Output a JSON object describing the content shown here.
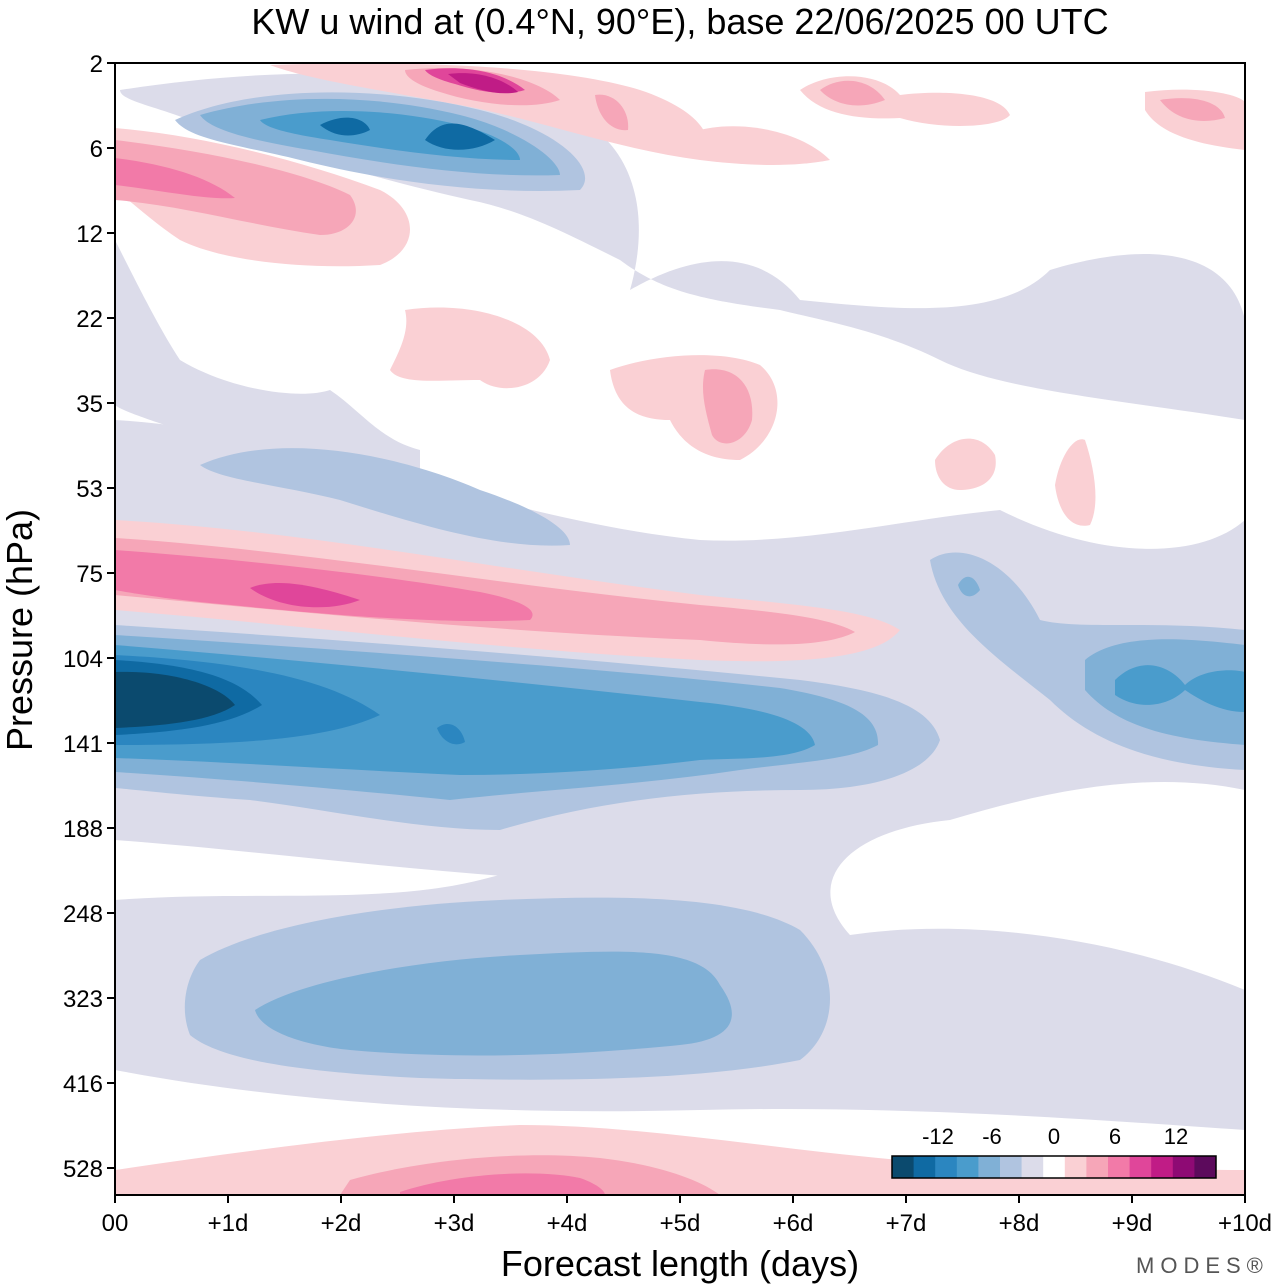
{
  "chart_data": {
    "type": "heatmap",
    "title": "KW u wind at (0.4°N, 90°E),  base 22/06/2025  00 UTC",
    "xlabel": "Forecast length (days)",
    "ylabel": "Pressure (hPa)",
    "x_ticks": [
      "00",
      "+1d",
      "+2d",
      "+3d",
      "+4d",
      "+5d",
      "+6d",
      "+7d",
      "+8d",
      "+9d",
      "+10d"
    ],
    "y_ticks": [
      "2",
      "6",
      "12",
      "22",
      "35",
      "53",
      "75",
      "104",
      "141",
      "188",
      "248",
      "323",
      "416",
      "528"
    ],
    "xlim": [
      0,
      10
    ],
    "ylim_levels": [
      2,
      528
    ],
    "colorbar": {
      "tick_labels": [
        "-12",
        "-6",
        "0",
        "6",
        "12"
      ],
      "levels": [
        -15,
        -13.5,
        -12,
        -10.5,
        -9,
        -7.5,
        -6,
        -4.5,
        -3,
        -1.5,
        1.5,
        3,
        4.5,
        6,
        7.5,
        9,
        10.5,
        12,
        13.5,
        15
      ],
      "colors": [
        "#0b4a6e",
        "#0f6aa3",
        "#2b86c0",
        "#4a9ccc",
        "#80b0d6",
        "#b0c4e0",
        "#dcdcea",
        "#ffffff",
        "#fad0d4",
        "#f6a6b8",
        "#f27aa8",
        "#e0469a",
        "#c01c86",
        "#8e0a74",
        "#5c0a5c"
      ]
    },
    "features": [
      {
        "pressure_hPa": 4,
        "x_days": [
          1,
          4
        ],
        "u_ms": -12
      },
      {
        "pressure_hPa": 3,
        "x_days": [
          3,
          3.6
        ],
        "u_ms": 12
      },
      {
        "pressure_hPa": 8,
        "x_days": [
          0,
          1
        ],
        "u_ms": 9
      },
      {
        "pressure_hPa": 80,
        "x_days": [
          0,
          2
        ],
        "u_ms": 10
      },
      {
        "pressure_hPa": 120,
        "x_days": [
          0,
          1
        ],
        "u_ms": -15
      },
      {
        "pressure_hPa": 130,
        "x_days": [
          1,
          6
        ],
        "u_ms": -10
      },
      {
        "pressure_hPa": 115,
        "x_days": [
          9,
          10
        ],
        "u_ms": -9
      },
      {
        "pressure_hPa": 330,
        "x_days": [
          1,
          6
        ],
        "u_ms": -6
      },
      {
        "pressure_hPa": 540,
        "x_days": [
          2.5,
          4.5
        ],
        "u_ms": 7
      }
    ]
  },
  "brand_text": "MODES®"
}
